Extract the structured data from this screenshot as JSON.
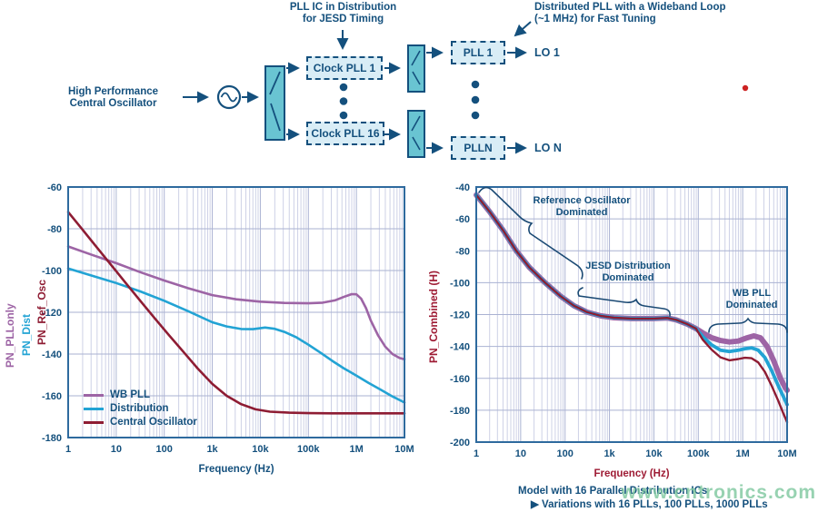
{
  "colors": {
    "navy": "#14507d",
    "teal_fill": "#69c4d2",
    "box_fill": "#d9edf6",
    "purple": "#9d64a5",
    "cyan": "#22a3d4",
    "maroon": "#8e1c33",
    "grid_minor": "#cdd1e6",
    "grid_major": "#aab2d2",
    "plot_border": "#2e6a9e",
    "red_label": "#9e1b34",
    "watermark_green": "#8ecfa8",
    "artifact_red": "#cc2222"
  },
  "diagram": {
    "annotation_jesd": "PLL IC in Distribution\nfor JESD Timing",
    "annotation_distributed": "Distributed PLL with a Wideband Loop\n(~1 MHz) for Fast Tuning",
    "source_label": "High Performance\nCentral Oscillator",
    "clock_pll_1": "Clock PLL 1",
    "clock_pll_16": "Clock PLL 16",
    "pll_1": "PLL 1",
    "pll_n": "PLLN",
    "lo_1": "LO 1",
    "lo_n": "LO N"
  },
  "captions": {
    "model": "Model with 16 Parallel Distribution ICs",
    "variations": "▶ Variations with 16 PLLs, 100 PLLs, 1000 PLLs"
  },
  "watermark": "www.cntronics.com",
  "chart_data": [
    {
      "type": "line",
      "xlabel": "Frequency (Hz)",
      "xlabel_color": "#14507d",
      "x_ticks": [
        "1",
        "10",
        "100",
        "1k",
        "10k",
        "100k",
        "1M",
        "10M"
      ],
      "x_log_range": [
        0,
        7
      ],
      "ylim": [
        -180,
        -60
      ],
      "y_ticks": [
        -60,
        -80,
        -100,
        -120,
        -140,
        -160,
        -180
      ],
      "grid": true,
      "y_axis_labels": [
        {
          "text": "PN_PLLonly",
          "color": "#9d64a5"
        },
        {
          "text": "PN_Dist",
          "color": "#22a3d4"
        },
        {
          "text": "PN_Ref_Osc",
          "color": "#8e1c33"
        }
      ],
      "legend_position": "bottom-left",
      "legend": [
        {
          "label": "WB PLL",
          "color": "#9d64a5"
        },
        {
          "label": "Distribution",
          "color": "#22a3d4"
        },
        {
          "label": "Central Oscillator",
          "color": "#8e1c33"
        }
      ],
      "series": [
        {
          "name": "WB PLL",
          "color": "#9d64a5",
          "width": 2.6,
          "points": [
            [
              0,
              -88.5
            ],
            [
              0.5,
              -92.5
            ],
            [
              1,
              -96.5
            ],
            [
              1.5,
              -100.8
            ],
            [
              2,
              -104.8
            ],
            [
              2.5,
              -108.5
            ],
            [
              3,
              -111.8
            ],
            [
              3.5,
              -113.8
            ],
            [
              4,
              -114.9
            ],
            [
              4.5,
              -115.5
            ],
            [
              5,
              -115.7
            ],
            [
              5.3,
              -115.4
            ],
            [
              5.55,
              -114.3
            ],
            [
              5.75,
              -112.5
            ],
            [
              5.9,
              -111.3
            ],
            [
              6.0,
              -111.4
            ],
            [
              6.1,
              -113.5
            ],
            [
              6.2,
              -118
            ],
            [
              6.3,
              -124
            ],
            [
              6.45,
              -131
            ],
            [
              6.6,
              -136.5
            ],
            [
              6.75,
              -140
            ],
            [
              6.9,
              -141.9
            ],
            [
              7,
              -142.5
            ]
          ]
        },
        {
          "name": "Distribution",
          "color": "#22a3d4",
          "width": 2.6,
          "points": [
            [
              0,
              -99
            ],
            [
              0.5,
              -102.5
            ],
            [
              1,
              -106
            ],
            [
              1.5,
              -110
            ],
            [
              2,
              -114.5
            ],
            [
              2.5,
              -119.5
            ],
            [
              3,
              -124.8
            ],
            [
              3.3,
              -126.8
            ],
            [
              3.6,
              -128
            ],
            [
              3.85,
              -128.1
            ],
            [
              4.1,
              -127.3
            ],
            [
              4.3,
              -127.9
            ],
            [
              4.5,
              -129.4
            ],
            [
              4.75,
              -132
            ],
            [
              5,
              -135.5
            ],
            [
              5.25,
              -139.3
            ],
            [
              5.5,
              -143.3
            ],
            [
              5.75,
              -147
            ],
            [
              6,
              -150.3
            ],
            [
              6.25,
              -153.8
            ],
            [
              6.5,
              -157
            ],
            [
              6.75,
              -160.3
            ],
            [
              7,
              -163.2
            ]
          ]
        },
        {
          "name": "Central Oscillator",
          "color": "#8e1c33",
          "width": 2.6,
          "points": [
            [
              0,
              -72
            ],
            [
              0.3,
              -80.5
            ],
            [
              0.6,
              -89
            ],
            [
              0.9,
              -97.5
            ],
            [
              1.2,
              -106
            ],
            [
              1.5,
              -114.5
            ],
            [
              1.8,
              -122.8
            ],
            [
              2.1,
              -131
            ],
            [
              2.4,
              -139
            ],
            [
              2.7,
              -147
            ],
            [
              3,
              -154.3
            ],
            [
              3.3,
              -160
            ],
            [
              3.6,
              -164
            ],
            [
              3.9,
              -166.5
            ],
            [
              4.2,
              -167.6
            ],
            [
              4.6,
              -168.1
            ],
            [
              5,
              -168.3
            ],
            [
              5.5,
              -168.4
            ],
            [
              6,
              -168.4
            ],
            [
              6.5,
              -168.4
            ],
            [
              7,
              -168.4
            ]
          ]
        }
      ]
    },
    {
      "type": "line",
      "xlabel": "Frequency (Hz)",
      "xlabel_color": "#9e1b34",
      "ylabel": "PN_Combined (H)",
      "ylabel_color": "#9e1b34",
      "x_ticks": [
        "1",
        "10",
        "100",
        "1k",
        "10k",
        "100k",
        "1M",
        "10M"
      ],
      "x_log_range": [
        0,
        7
      ],
      "ylim": [
        -200,
        -40
      ],
      "y_ticks": [
        -40,
        -60,
        -80,
        -100,
        -120,
        -140,
        -160,
        -180,
        -200
      ],
      "grid": true,
      "annotations": [
        {
          "text": "Reference Oscillator\nDominated"
        },
        {
          "text": "JESD Distribution\nDominated"
        },
        {
          "text": "WB PLL\nDominated"
        }
      ],
      "series": [
        {
          "name": "variation-upper",
          "color": "#9d64a5",
          "width": 6,
          "points": [
            [
              0,
              -45
            ],
            [
              0.3,
              -55.5
            ],
            [
              0.6,
              -67
            ],
            [
              0.9,
              -80
            ],
            [
              1.2,
              -90.5
            ],
            [
              1.55,
              -100
            ],
            [
              1.9,
              -108.5
            ],
            [
              2.2,
              -114.5
            ],
            [
              2.5,
              -118.5
            ],
            [
              2.8,
              -120.8
            ],
            [
              3.1,
              -122
            ],
            [
              3.5,
              -122.5
            ],
            [
              4,
              -122.5
            ],
            [
              4.3,
              -122.1
            ],
            [
              4.5,
              -123.3
            ],
            [
              4.75,
              -126
            ],
            [
              4.95,
              -128.8
            ],
            [
              5.1,
              -131.5
            ],
            [
              5.3,
              -134.5
            ],
            [
              5.5,
              -136.3
            ],
            [
              5.7,
              -137.2
            ],
            [
              5.9,
              -136.6
            ],
            [
              6.1,
              -134.6
            ],
            [
              6.25,
              -133.4
            ],
            [
              6.4,
              -134.6
            ],
            [
              6.55,
              -140
            ],
            [
              6.7,
              -149
            ],
            [
              6.85,
              -160
            ],
            [
              6.95,
              -165.5
            ],
            [
              7,
              -167.5
            ]
          ]
        },
        {
          "name": "variation-middle",
          "color": "#22a3d4",
          "width": 3.8,
          "points": [
            [
              0,
              -45
            ],
            [
              0.3,
              -55.5
            ],
            [
              0.6,
              -67
            ],
            [
              0.9,
              -80
            ],
            [
              1.2,
              -90.5
            ],
            [
              1.55,
              -100
            ],
            [
              1.9,
              -108.5
            ],
            [
              2.2,
              -114.5
            ],
            [
              2.5,
              -118.5
            ],
            [
              2.8,
              -120.8
            ],
            [
              3.1,
              -122
            ],
            [
              3.5,
              -122.5
            ],
            [
              4,
              -122.5
            ],
            [
              4.3,
              -122.1
            ],
            [
              4.5,
              -123.3
            ],
            [
              4.75,
              -126
            ],
            [
              4.95,
              -128.8
            ],
            [
              5.1,
              -133.8
            ],
            [
              5.3,
              -139
            ],
            [
              5.5,
              -142.3
            ],
            [
              5.7,
              -143.2
            ],
            [
              5.9,
              -142.4
            ],
            [
              6.05,
              -141.4
            ],
            [
              6.2,
              -140.9
            ],
            [
              6.35,
              -142.3
            ],
            [
              6.5,
              -147
            ],
            [
              6.65,
              -155
            ],
            [
              6.8,
              -164.5
            ],
            [
              6.9,
              -170.5
            ],
            [
              7,
              -176.5
            ]
          ]
        },
        {
          "name": "variation-lower",
          "color": "#8e1c33",
          "width": 2.4,
          "points": [
            [
              0,
              -45
            ],
            [
              0.3,
              -55.5
            ],
            [
              0.6,
              -67
            ],
            [
              0.9,
              -80
            ],
            [
              1.2,
              -90.5
            ],
            [
              1.55,
              -100
            ],
            [
              1.9,
              -108.5
            ],
            [
              2.2,
              -114.5
            ],
            [
              2.5,
              -118.5
            ],
            [
              2.8,
              -120.8
            ],
            [
              3.1,
              -122
            ],
            [
              3.5,
              -122.5
            ],
            [
              4,
              -122.5
            ],
            [
              4.3,
              -122.1
            ],
            [
              4.5,
              -123.3
            ],
            [
              4.75,
              -126
            ],
            [
              4.95,
              -128.8
            ],
            [
              5.1,
              -135.8
            ],
            [
              5.3,
              -142
            ],
            [
              5.5,
              -146.8
            ],
            [
              5.7,
              -148.7
            ],
            [
              5.9,
              -147.9
            ],
            [
              6.05,
              -147.1
            ],
            [
              6.2,
              -147.4
            ],
            [
              6.35,
              -150
            ],
            [
              6.5,
              -156
            ],
            [
              6.65,
              -164.5
            ],
            [
              6.8,
              -174
            ],
            [
              6.9,
              -181
            ],
            [
              7,
              -187.5
            ]
          ]
        }
      ]
    }
  ]
}
